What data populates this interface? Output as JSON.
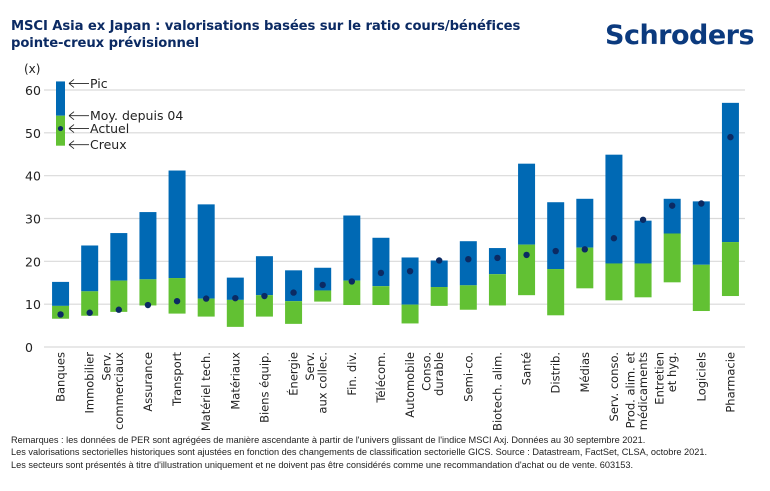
{
  "header": {
    "title": "MSCI Asia ex Japan : valorisations basées sur le ratio cours/bénéfices pointe-creux prévisionnel",
    "logo": "Schroders"
  },
  "colors": {
    "upper_bar": "#0069b4",
    "lower_bar": "#62c133",
    "current_dot": "#0b2a63",
    "title": "#0b2a63",
    "grid": "#d9d9d9"
  },
  "legend": {
    "peak": "Pic",
    "average": "Moy. depuis 04",
    "current": "Actuel",
    "trough": "Creux"
  },
  "notes": [
    "Remarques : les données de PER sont agrégées de manière ascendante à partir de l'univers glissant de l'indice MSCI Axj. Données au 30 septembre 2021.",
    "Les valorisations sectorielles historiques sont ajustées en fonction des changements de classification sectorielle GICS. Source : Datastream, FactSet, CLSA, octobre 2021.",
    "Les secteurs sont présentés à titre d'illustration uniquement et ne doivent pas être considérés comme une recommandation d'achat ou de vente. 603153."
  ],
  "chart_data": {
    "type": "bar",
    "subtype": "floating-range",
    "title": "MSCI Asia ex Japan : valorisations basées sur le ratio cours/bénéfices pointe-creux prévisionnel",
    "ylabel": "(x)",
    "xlabel": "",
    "ylim": [
      0,
      60
    ],
    "yticks": [
      0,
      10,
      20,
      30,
      40,
      50,
      60
    ],
    "grid": true,
    "legend_position": "top-left",
    "legend_sample": {
      "peak": 62,
      "average": 54,
      "current": 51,
      "trough": 47
    },
    "categories": [
      [
        "Banques"
      ],
      [
        "Immobilier"
      ],
      [
        "Serv.",
        "commerciaux"
      ],
      [
        "Assurance"
      ],
      [
        "Transport"
      ],
      [
        "Matériel tech."
      ],
      [
        "Matériaux"
      ],
      [
        "Biens équip."
      ],
      [
        "Énergie"
      ],
      [
        "Serv.",
        "aux collec."
      ],
      [
        "Fin. div."
      ],
      [
        "Télécom."
      ],
      [
        "Automobile"
      ],
      [
        "Conso.",
        "durable"
      ],
      [
        "Semi-co."
      ],
      [
        "Biotech. alim."
      ],
      [
        "Santé"
      ],
      [
        "Distrib."
      ],
      [
        "Médias"
      ],
      [
        "Serv. conso."
      ],
      [
        "Prod. alim. et",
        "médicaments"
      ],
      [
        "Entretien",
        "et hyg."
      ],
      [
        "Logiciels"
      ],
      [
        "Pharmacie"
      ]
    ],
    "series": [
      {
        "name": "Pic",
        "values": [
          15.2,
          23.7,
          26.6,
          31.5,
          41.2,
          33.3,
          16.2,
          21.2,
          17.9,
          18.5,
          30.7,
          25.5,
          20.9,
          20.2,
          24.7,
          23.1,
          42.8,
          33.8,
          34.6,
          44.9,
          29.5,
          34.6,
          34.0,
          57.0
        ]
      },
      {
        "name": "Moy. depuis 04",
        "values": [
          9.6,
          13.0,
          15.5,
          15.8,
          16.1,
          11.3,
          11.0,
          12.1,
          10.7,
          13.2,
          15.5,
          14.2,
          9.9,
          14.0,
          14.4,
          17.0,
          23.9,
          18.2,
          23.2,
          19.5,
          19.5,
          26.5,
          19.2,
          24.5
        ]
      },
      {
        "name": "Actuel",
        "values": [
          7.6,
          8.0,
          8.7,
          9.8,
          10.7,
          11.3,
          11.4,
          11.9,
          12.7,
          14.5,
          15.3,
          17.3,
          17.7,
          20.2,
          20.5,
          20.8,
          21.5,
          22.4,
          22.8,
          25.4,
          29.7,
          33.0,
          33.5,
          49.0
        ]
      },
      {
        "name": "Creux",
        "values": [
          6.6,
          7.3,
          8.2,
          9.7,
          7.8,
          7.1,
          4.7,
          7.1,
          5.4,
          10.6,
          9.8,
          9.8,
          5.5,
          9.6,
          8.7,
          9.7,
          12.1,
          7.4,
          13.7,
          10.9,
          11.6,
          15.1,
          8.4,
          11.9
        ]
      }
    ]
  }
}
